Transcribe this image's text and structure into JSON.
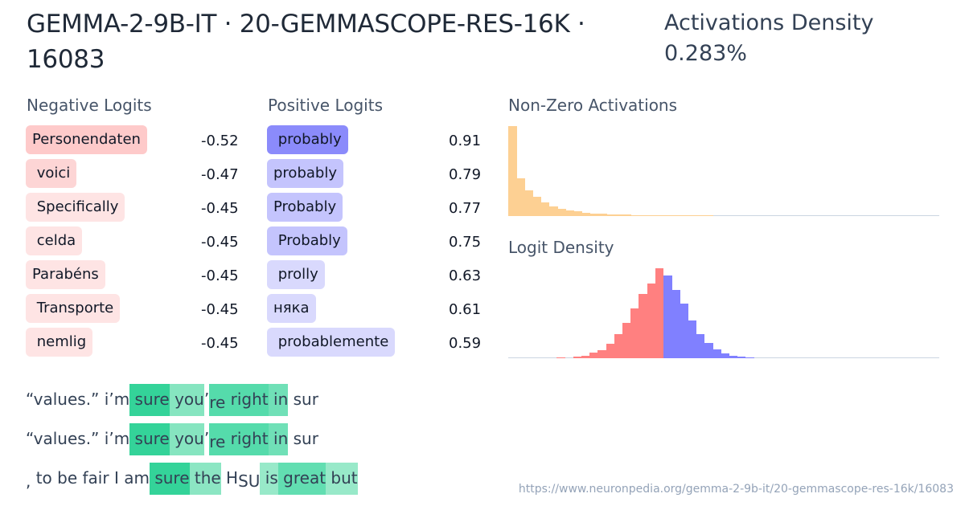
{
  "header": {
    "title": "GEMMA-2-9B-IT · 20-GEMMASCOPE-RES-16K · 16083",
    "density_label": "Activations Density",
    "density_value": "0.283%"
  },
  "negative_logits": {
    "title": "Negative Logits",
    "items": [
      {
        "token": "Personendaten",
        "value": "-0.52",
        "color": "#fecaca"
      },
      {
        "token": " voici",
        "value": "-0.47",
        "color": "#fdd5d5"
      },
      {
        "token": " Specifically",
        "value": "-0.45",
        "color": "#fee4e4"
      },
      {
        "token": " celda",
        "value": "-0.45",
        "color": "#fee4e4"
      },
      {
        "token": "Parabéns",
        "value": "-0.45",
        "color": "#fee4e4"
      },
      {
        "token": " Transporte",
        "value": "-0.45",
        "color": "#fee4e4"
      },
      {
        "token": " nemlig",
        "value": "-0.45",
        "color": "#fee4e4"
      }
    ]
  },
  "positive_logits": {
    "title": "Positive Logits",
    "items": [
      {
        "token": " probably",
        "value": "0.91",
        "color": "#8b8bfb"
      },
      {
        "token": "probably",
        "value": "0.79",
        "color": "#c4c4fd"
      },
      {
        "token": "Probably",
        "value": "0.77",
        "color": "#c4c4fd"
      },
      {
        "token": " Probably",
        "value": "0.75",
        "color": "#c4c4fd"
      },
      {
        "token": " prolly",
        "value": "0.63",
        "color": "#d9d9fd"
      },
      {
        "token": "няка",
        "value": "0.61",
        "color": "#d9d9fd"
      },
      {
        "token": " probablemente",
        "value": "0.59",
        "color": "#d9d9fd"
      }
    ]
  },
  "chart_data": [
    {
      "type": "bar",
      "title": "Non-Zero Activations",
      "color": "#fdd093",
      "values": [
        100,
        42,
        29,
        21,
        15,
        11,
        8,
        6,
        5,
        4,
        3,
        2.5,
        2,
        1.8,
        1.5,
        1.2,
        1,
        0.8,
        0.6,
        0.5,
        0.4,
        0.3,
        0.3,
        0.2,
        0.2
      ],
      "xlabel": "",
      "ylabel": "",
      "grid": false
    },
    {
      "type": "bar",
      "title": "Logit Density",
      "negative_color": "#ff8080",
      "positive_color": "#8080ff",
      "negative_values": [
        0.5,
        0,
        2,
        3,
        6,
        9,
        16,
        27,
        39,
        55,
        71,
        83,
        100
      ],
      "positive_values": [
        92,
        76,
        61,
        42,
        27,
        17,
        10,
        5,
        3,
        1.5,
        0.5
      ],
      "xlabel": "",
      "ylabel": "",
      "grid": false
    }
  ],
  "examples": [
    {
      "tokens": [
        {
          "text": "“values.”",
          "act": 0,
          "color": ""
        },
        {
          "text": " i",
          "act": 0,
          "color": ""
        },
        {
          "text": "’m",
          "act": 0,
          "color": ""
        },
        {
          "text": " sure",
          "act": 1,
          "color": "#34d399"
        },
        {
          "text": " you",
          "act": 0.5,
          "color": "#86e5c0"
        },
        {
          "text": "’",
          "act": 0,
          "color": ""
        },
        {
          "text": "re",
          "act": 0.8,
          "color": "#55dbab",
          "sub": true
        },
        {
          "text": " right",
          "act": 0.8,
          "color": "#55dbab"
        },
        {
          "text": " in",
          "act": 0.6,
          "color": "#70e0b7"
        },
        {
          "text": " sur",
          "act": 0,
          "color": ""
        }
      ]
    },
    {
      "tokens": [
        {
          "text": "“values.”",
          "act": 0,
          "color": ""
        },
        {
          "text": " i",
          "act": 0,
          "color": ""
        },
        {
          "text": "’m",
          "act": 0,
          "color": ""
        },
        {
          "text": " sure",
          "act": 1,
          "color": "#34d399"
        },
        {
          "text": " you",
          "act": 0.5,
          "color": "#86e5c0"
        },
        {
          "text": "’",
          "act": 0,
          "color": ""
        },
        {
          "text": "re",
          "act": 0.8,
          "color": "#55dbab",
          "sub": true
        },
        {
          "text": " right",
          "act": 0.8,
          "color": "#55dbab"
        },
        {
          "text": " in",
          "act": 0.6,
          "color": "#70e0b7"
        },
        {
          "text": " sur",
          "act": 0,
          "color": ""
        }
      ]
    },
    {
      "tokens": [
        {
          "text": ",",
          "act": 0,
          "color": "",
          "sub": true
        },
        {
          "text": " to",
          "act": 0,
          "color": ""
        },
        {
          "text": " be",
          "act": 0,
          "color": ""
        },
        {
          "text": " fair",
          "act": 0,
          "color": ""
        },
        {
          "text": " I",
          "act": 0,
          "color": ""
        },
        {
          "text": " am",
          "act": 0,
          "color": ""
        },
        {
          "text": " sure",
          "act": 1,
          "color": "#34d399"
        },
        {
          "text": " the",
          "act": 0.45,
          "color": "#8ce6c3"
        },
        {
          "text": " H",
          "act": 0,
          "color": ""
        },
        {
          "text": "SU",
          "act": 0,
          "color": "",
          "sub": true
        },
        {
          "text": " is",
          "act": 0.4,
          "color": "#98e9c9"
        },
        {
          "text": " great",
          "act": 0.7,
          "color": "#62deb1"
        },
        {
          "text": " but",
          "act": 0.4,
          "color": "#98e9c9"
        }
      ]
    }
  ],
  "footer": {
    "url": "https://www.neuronpedia.org/gemma-2-9b-it/20-gemmascope-res-16k/16083"
  }
}
